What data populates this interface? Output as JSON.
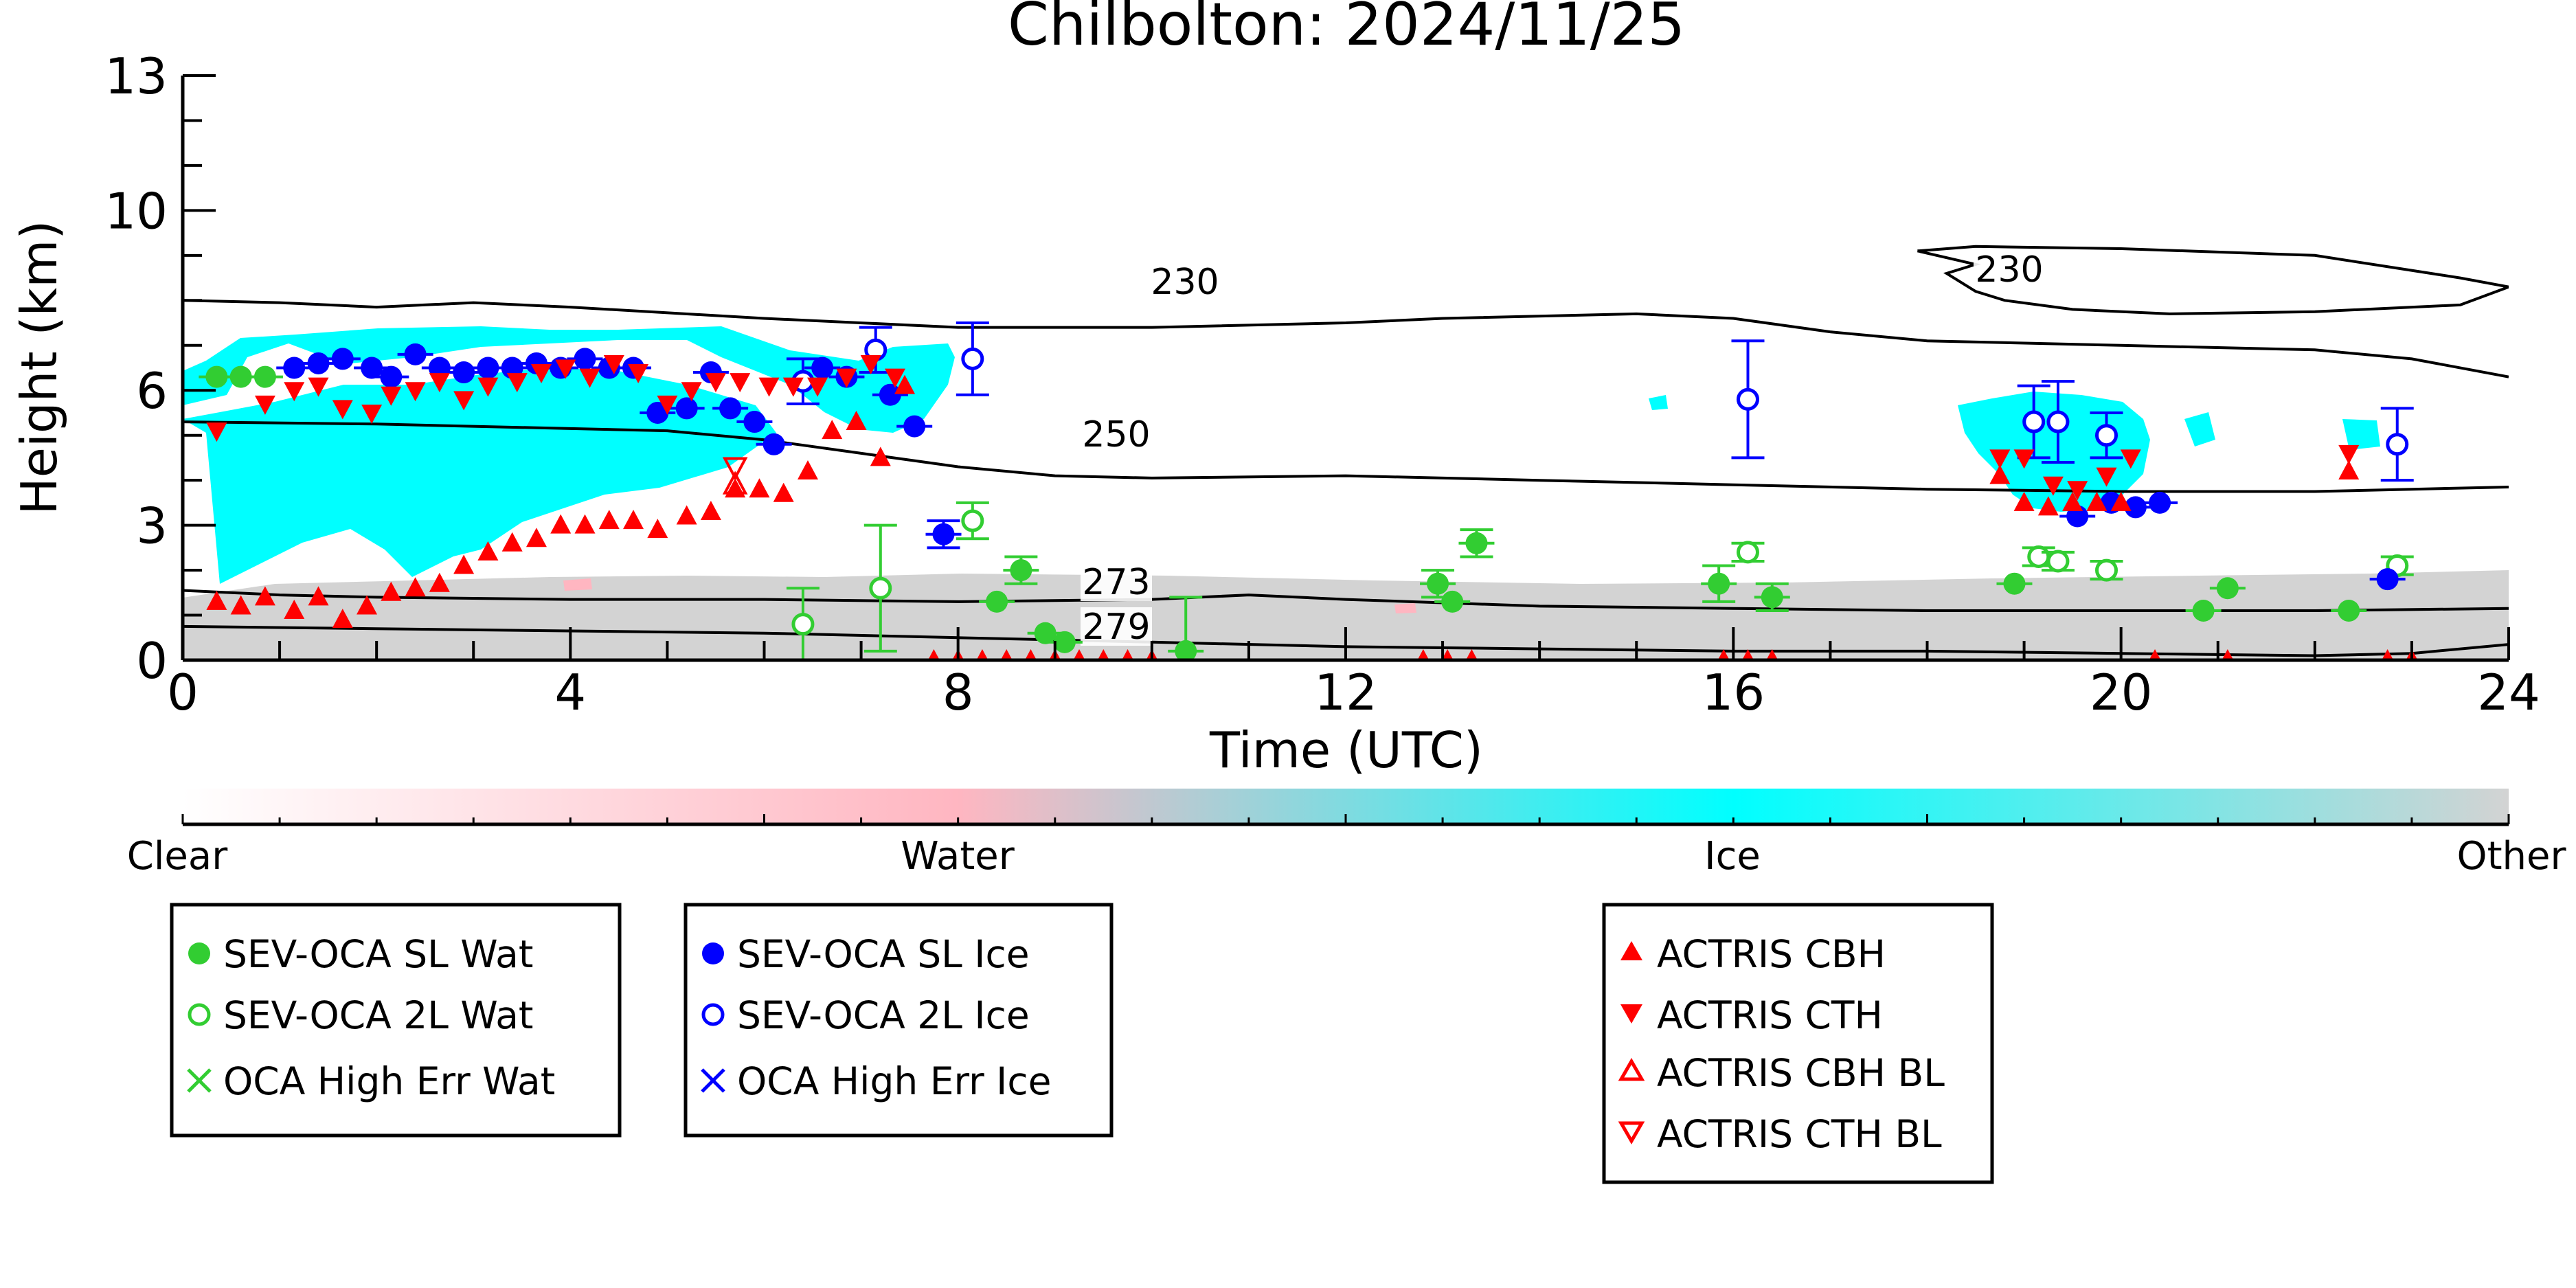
{
  "chart_data": {
    "type": "scatter",
    "title": "Chilbolton: 2024/11/25",
    "xlabel": "Time (UTC)",
    "ylabel": "Height (km)",
    "xlim": [
      0,
      24
    ],
    "ylim": [
      0,
      13
    ],
    "x_ticks": [
      0,
      4,
      8,
      12,
      16,
      20,
      24
    ],
    "y_ticks": [
      0,
      3,
      6,
      10,
      13
    ],
    "colorbar": {
      "labels": [
        "Clear",
        "Water",
        "Ice",
        "Other"
      ],
      "colors": [
        "#ffffff",
        "#ffb6c1",
        "#00ffff",
        "#d3d3d3"
      ]
    },
    "contours": [
      {
        "label": "230",
        "points": [
          [
            0,
            8.0
          ],
          [
            1,
            7.95
          ],
          [
            2,
            7.85
          ],
          [
            3,
            7.95
          ],
          [
            4,
            7.85
          ],
          [
            6,
            7.6
          ],
          [
            8,
            7.4
          ],
          [
            10,
            7.4
          ],
          [
            12,
            7.5
          ],
          [
            13,
            7.6
          ],
          [
            15,
            7.7
          ],
          [
            16,
            7.6
          ],
          [
            17,
            7.3
          ],
          [
            18,
            7.1
          ],
          [
            20,
            7.0
          ],
          [
            22,
            6.9
          ],
          [
            23,
            6.7
          ],
          [
            24,
            6.3
          ]
        ]
      },
      {
        "label": "230",
        "points": [
          [
            17.9,
            9.1
          ],
          [
            18.5,
            9.2
          ],
          [
            20,
            9.15
          ],
          [
            22,
            9.0
          ],
          [
            23.5,
            8.5
          ],
          [
            24,
            8.3
          ],
          [
            23.5,
            7.9
          ],
          [
            22,
            7.75
          ],
          [
            20.5,
            7.7
          ],
          [
            19.5,
            7.8
          ],
          [
            18.8,
            8.0
          ],
          [
            18.5,
            8.2
          ],
          [
            18.2,
            8.6
          ],
          [
            18.5,
            8.8
          ],
          [
            17.9,
            9.1
          ]
        ]
      },
      {
        "label": "250",
        "points": [
          [
            0,
            5.3
          ],
          [
            2,
            5.25
          ],
          [
            4,
            5.15
          ],
          [
            5,
            5.1
          ],
          [
            6,
            4.9
          ],
          [
            7,
            4.6
          ],
          [
            8,
            4.3
          ],
          [
            9,
            4.1
          ],
          [
            10,
            4.05
          ],
          [
            12,
            4.1
          ],
          [
            14,
            4.0
          ],
          [
            16,
            3.9
          ],
          [
            18,
            3.8
          ],
          [
            20,
            3.75
          ],
          [
            22,
            3.75
          ],
          [
            23,
            3.8
          ],
          [
            24,
            3.85
          ]
        ]
      },
      {
        "label": "273",
        "points": [
          [
            0,
            1.55
          ],
          [
            1,
            1.45
          ],
          [
            2,
            1.4
          ],
          [
            4,
            1.35
          ],
          [
            6,
            1.35
          ],
          [
            8,
            1.3
          ],
          [
            10,
            1.35
          ],
          [
            11,
            1.45
          ],
          [
            12,
            1.35
          ],
          [
            14,
            1.2
          ],
          [
            16,
            1.15
          ],
          [
            18,
            1.1
          ],
          [
            20,
            1.1
          ],
          [
            22,
            1.1
          ],
          [
            24,
            1.15
          ]
        ]
      },
      {
        "label": "279",
        "points": [
          [
            0,
            0.75
          ],
          [
            2,
            0.7
          ],
          [
            4,
            0.65
          ],
          [
            6,
            0.6
          ],
          [
            8,
            0.5
          ],
          [
            9,
            0.45
          ],
          [
            10,
            0.4
          ],
          [
            12,
            0.3
          ],
          [
            14,
            0.25
          ],
          [
            16,
            0.2
          ],
          [
            18,
            0.2
          ],
          [
            20,
            0.15
          ],
          [
            22,
            0.1
          ],
          [
            23,
            0.15
          ],
          [
            24,
            0.35
          ]
        ]
      }
    ],
    "series": [
      {
        "name": "SEV-OCA SL Wat",
        "color": "#32cd32",
        "marker": "filled-circle",
        "x": [
          0.35,
          0.6,
          0.85,
          8.4,
          8.65,
          8.9,
          9.1,
          10.35,
          12.95,
          13.1,
          13.35,
          15.85,
          16.4,
          18.9,
          20.85,
          21.1,
          22.35
        ],
        "y": [
          6.3,
          6.3,
          6.3,
          1.3,
          2.0,
          0.6,
          0.4,
          0.2,
          1.7,
          1.3,
          2.6,
          1.7,
          1.4,
          1.7,
          1.1,
          1.6,
          1.1
        ],
        "err": [
          0,
          0,
          0,
          0,
          0.3,
          0,
          0,
          1.2,
          0.3,
          0,
          0.3,
          0.4,
          0.3,
          0,
          0,
          0,
          0
        ]
      },
      {
        "name": "SEV-OCA 2L Wat",
        "color": "#32cd32",
        "marker": "open-circle",
        "x": [
          6.4,
          7.2,
          8.15,
          16.15,
          19.15,
          19.35,
          19.85,
          22.85
        ],
        "y": [
          0.8,
          1.6,
          3.1,
          2.4,
          2.3,
          2.2,
          2.0,
          2.1
        ],
        "err": [
          0.8,
          1.4,
          0.4,
          0.2,
          0.2,
          0.2,
          0.2,
          0.2
        ]
      },
      {
        "name": "OCA High Err Wat",
        "color": "#32cd32",
        "marker": "x",
        "x": [],
        "y": []
      },
      {
        "name": "SEV-OCA SL Ice",
        "color": "#0000ff",
        "marker": "filled-circle",
        "x": [
          1.15,
          1.4,
          1.65,
          1.95,
          2.15,
          2.4,
          2.65,
          2.9,
          3.15,
          3.4,
          3.65,
          3.9,
          4.15,
          4.4,
          4.65,
          4.9,
          5.2,
          5.45,
          5.65,
          5.9,
          6.1,
          6.6,
          6.85,
          7.3,
          7.55,
          7.85,
          19.55,
          19.9,
          20.15,
          20.4,
          22.75
        ],
        "y": [
          6.5,
          6.6,
          6.7,
          6.5,
          6.3,
          6.8,
          6.5,
          6.4,
          6.5,
          6.5,
          6.6,
          6.5,
          6.7,
          6.5,
          6.5,
          5.5,
          5.6,
          6.4,
          5.6,
          5.3,
          4.8,
          6.5,
          6.3,
          5.9,
          5.2,
          2.8,
          3.2,
          3.5,
          3.4,
          3.5,
          1.8
        ],
        "err": [
          0,
          0,
          0,
          0,
          0,
          0,
          0,
          0,
          0,
          0,
          0,
          0,
          0,
          0,
          0,
          0,
          0,
          0,
          0,
          0,
          0,
          0,
          0,
          0,
          0,
          0.3,
          0,
          0,
          0,
          0,
          0
        ]
      },
      {
        "name": "SEV-OCA 2L Ice",
        "color": "#0000ff",
        "marker": "open-circle",
        "x": [
          6.4,
          7.15,
          8.15,
          16.15,
          19.1,
          19.35,
          19.85,
          22.85
        ],
        "y": [
          6.2,
          6.9,
          6.7,
          5.8,
          5.3,
          5.3,
          5.0,
          4.8
        ],
        "err": [
          0.5,
          0.5,
          0.8,
          1.3,
          0.8,
          0.9,
          0.5,
          0.8
        ]
      },
      {
        "name": "OCA High Err Ice",
        "color": "#0000ff",
        "marker": "x",
        "x": [],
        "y": []
      },
      {
        "name": "ACTRIS CBH",
        "color": "#ff0000",
        "marker": "filled-triangle-up",
        "x": [
          0.35,
          0.6,
          0.85,
          1.15,
          1.4,
          1.65,
          1.9,
          2.15,
          2.4,
          2.65,
          2.9,
          3.15,
          3.4,
          3.65,
          3.9,
          4.15,
          4.4,
          4.65,
          4.9,
          5.2,
          5.45,
          5.7,
          5.95,
          6.2,
          6.45,
          6.7,
          6.95,
          7.2,
          7.45,
          7.75,
          8.0,
          8.25,
          8.5,
          8.75,
          9.0,
          9.25,
          9.5,
          9.75,
          10.0,
          12.8,
          13.05,
          13.3,
          15.9,
          16.15,
          16.4,
          18.75,
          19.0,
          19.25,
          19.5,
          19.75,
          20.0,
          20.35,
          21.1,
          22.35,
          22.75,
          23.0
        ],
        "y": [
          1.3,
          1.2,
          1.4,
          1.1,
          1.4,
          0.9,
          1.2,
          1.5,
          1.6,
          1.7,
          2.1,
          2.4,
          2.6,
          2.7,
          3.0,
          3.0,
          3.1,
          3.1,
          2.9,
          3.2,
          3.3,
          3.8,
          3.8,
          3.7,
          4.2,
          5.1,
          5.3,
          4.5,
          6.1,
          0,
          0,
          0,
          0,
          0,
          0,
          0,
          0,
          0,
          0,
          0,
          0,
          0,
          0,
          0,
          0,
          4.1,
          3.5,
          3.4,
          3.5,
          3.5,
          3.5,
          0,
          0,
          4.2,
          0,
          0
        ]
      },
      {
        "name": "ACTRIS CTH",
        "color": "#ff0000",
        "marker": "filled-triangle-down",
        "x": [
          0.35,
          0.85,
          1.15,
          1.4,
          1.65,
          1.95,
          2.15,
          2.4,
          2.65,
          2.9,
          3.15,
          3.45,
          3.7,
          3.95,
          4.2,
          4.45,
          4.7,
          5.0,
          5.25,
          5.5,
          5.75,
          6.05,
          6.3,
          6.55,
          6.85,
          7.1,
          7.35,
          18.75,
          19.0,
          19.3,
          19.55,
          19.85,
          20.1,
          22.35
        ],
        "y": [
          5.1,
          5.7,
          6.0,
          6.1,
          5.6,
          5.5,
          5.9,
          6.0,
          6.2,
          5.8,
          6.1,
          6.2,
          6.4,
          6.5,
          6.3,
          6.6,
          6.4,
          5.7,
          6.0,
          6.2,
          6.2,
          6.1,
          6.1,
          6.1,
          6.3,
          6.6,
          6.3,
          4.5,
          4.5,
          3.9,
          3.8,
          4.1,
          4.5,
          4.6
        ]
      },
      {
        "name": "ACTRIS CBH BL",
        "color": "#ff0000",
        "marker": "open-triangle-up",
        "x": [
          5.7
        ],
        "y": [
          3.9
        ]
      },
      {
        "name": "ACTRIS CTH BL",
        "color": "#ff0000",
        "marker": "open-triangle-down",
        "x": [
          5.7
        ],
        "y": [
          4.3
        ]
      }
    ]
  }
}
